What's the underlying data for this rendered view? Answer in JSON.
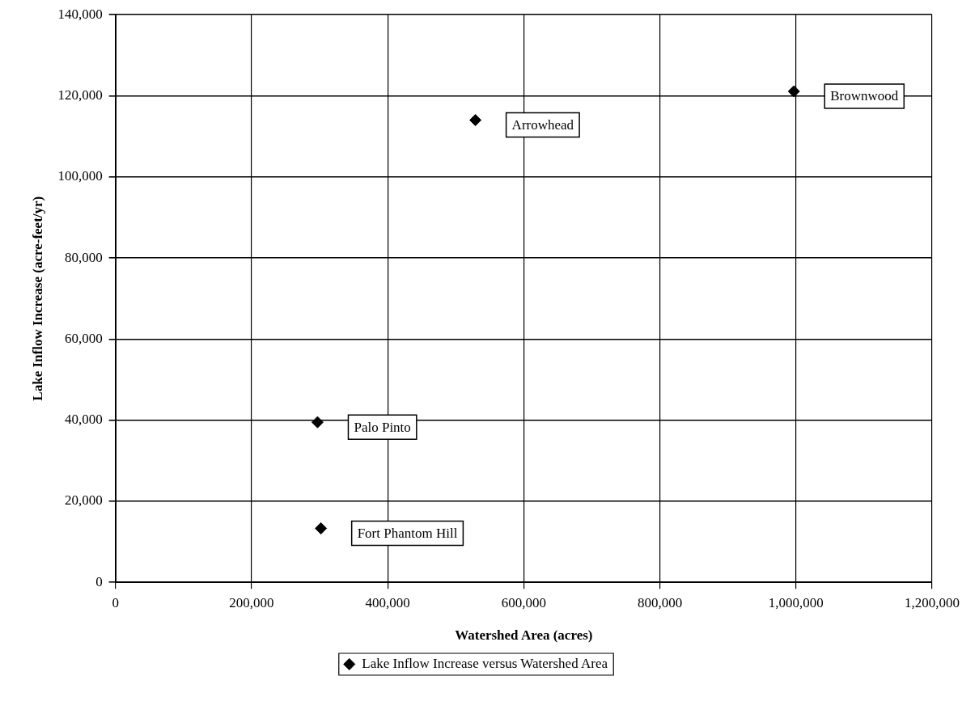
{
  "chart_data": {
    "type": "scatter",
    "xlabel": "Watershed Area (acres)",
    "ylabel": "Lake Inflow Increase (acre-feet/yr)",
    "xlim": [
      0,
      1200000
    ],
    "xticks": [
      0,
      {
        "value": 200000,
        "label": "200,000"
      },
      {
        "value": 400000,
        "label": "400,000"
      },
      {
        "value": 600000,
        "label": "600,000"
      },
      {
        "value": 800000,
        "label": "800,000"
      },
      {
        "value": 1000000,
        "label": "1,000,000"
      },
      {
        "value": 1200000,
        "label": "1,200,000"
      }
    ],
    "ylim": [
      0,
      140000
    ],
    "yticks": [
      0,
      {
        "value": 20000,
        "label": "20,000"
      },
      {
        "value": 40000,
        "label": "40,000"
      },
      {
        "value": 60000,
        "label": "60,000"
      },
      {
        "value": 80000,
        "label": "80,000"
      },
      {
        "value": 100000,
        "label": "100,000"
      },
      {
        "value": 120000,
        "label": "120,000"
      },
      {
        "value": 140000,
        "label": "140,000"
      }
    ],
    "grid": true,
    "legend": "bottom",
    "marker": "diamond",
    "series": [
      {
        "name": "Lake Inflow Increase versus Watershed Area",
        "color": "#000000",
        "x": [
          297000,
          302000,
          529000,
          997000
        ],
        "values": [
          39500,
          13300,
          114000,
          121100
        ]
      }
    ],
    "annotations": [
      {
        "text": "Palo Pinto",
        "x": 297000,
        "y": 39500
      },
      {
        "text": "Fort Phantom Hill",
        "x": 302000,
        "y": 13300
      },
      {
        "text": "Arrowhead",
        "x": 529000,
        "y": 114000
      },
      {
        "text": "Brownwood",
        "x": 997000,
        "y": 121100
      }
    ]
  }
}
